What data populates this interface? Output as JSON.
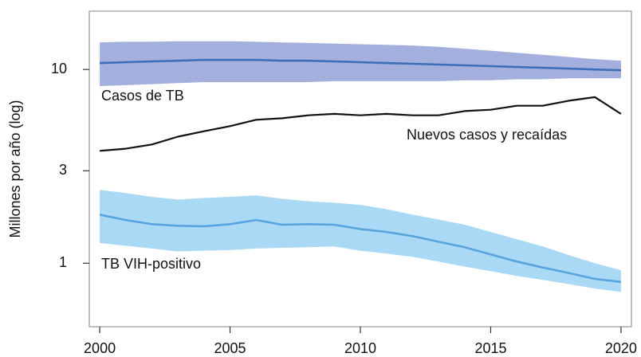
{
  "chart_data": {
    "type": "line",
    "y_label": "Millones por año (log)",
    "x": [
      2000,
      2001,
      2002,
      2003,
      2004,
      2005,
      2006,
      2007,
      2008,
      2009,
      2010,
      2011,
      2012,
      2013,
      2014,
      2015,
      2016,
      2017,
      2018,
      2019,
      2020
    ],
    "xlim": [
      1999.6,
      2020.4
    ],
    "xticks": [
      2000,
      2005,
      2010,
      2015,
      2020
    ],
    "ylim": [
      0.47,
      20
    ],
    "yticks": [
      1,
      3,
      10
    ],
    "log_y": true,
    "series": [
      {
        "name": "Casos de TB",
        "color": "#3d6fb8",
        "band_color": "#a3b0de",
        "values": [
          10.8,
          10.9,
          11.0,
          11.1,
          11.2,
          11.2,
          11.2,
          11.1,
          11.1,
          11.0,
          10.9,
          10.8,
          10.7,
          10.6,
          10.5,
          10.4,
          10.3,
          10.2,
          10.1,
          10.0,
          9.9
        ],
        "upper": [
          13.8,
          13.9,
          13.9,
          14.0,
          14.0,
          14.0,
          13.9,
          13.8,
          13.7,
          13.6,
          13.5,
          13.4,
          13.3,
          13.1,
          12.8,
          12.5,
          12.2,
          11.9,
          11.6,
          11.3,
          11.1
        ],
        "lower": [
          8.2,
          8.3,
          8.4,
          8.5,
          8.6,
          8.6,
          8.6,
          8.6,
          8.6,
          8.7,
          8.7,
          8.7,
          8.7,
          8.7,
          8.8,
          8.8,
          8.9,
          8.9,
          9.0,
          9.0,
          9.0
        ]
      },
      {
        "name": "Nuevos casos y recaídas",
        "color": "#111111",
        "values": [
          3.8,
          3.9,
          4.1,
          4.5,
          4.8,
          5.1,
          5.5,
          5.6,
          5.8,
          5.9,
          5.8,
          5.9,
          5.8,
          5.8,
          6.1,
          6.2,
          6.5,
          6.5,
          6.9,
          7.2,
          5.9
        ]
      },
      {
        "name": "TB VIH-positivo",
        "color": "#5aa4dc",
        "band_color": "#aad9f6",
        "values": [
          1.78,
          1.67,
          1.59,
          1.56,
          1.55,
          1.59,
          1.67,
          1.58,
          1.59,
          1.58,
          1.5,
          1.45,
          1.38,
          1.29,
          1.21,
          1.11,
          1.02,
          0.95,
          0.89,
          0.83,
          0.8
        ],
        "upper": [
          2.39,
          2.3,
          2.2,
          2.13,
          2.17,
          2.2,
          2.24,
          2.15,
          2.09,
          2.05,
          2.0,
          1.9,
          1.78,
          1.68,
          1.58,
          1.45,
          1.33,
          1.22,
          1.1,
          1.0,
          0.92
        ],
        "lower": [
          1.27,
          1.23,
          1.19,
          1.15,
          1.16,
          1.17,
          1.19,
          1.2,
          1.21,
          1.22,
          1.16,
          1.12,
          1.08,
          1.02,
          0.96,
          0.91,
          0.86,
          0.82,
          0.78,
          0.74,
          0.71
        ]
      }
    ]
  }
}
